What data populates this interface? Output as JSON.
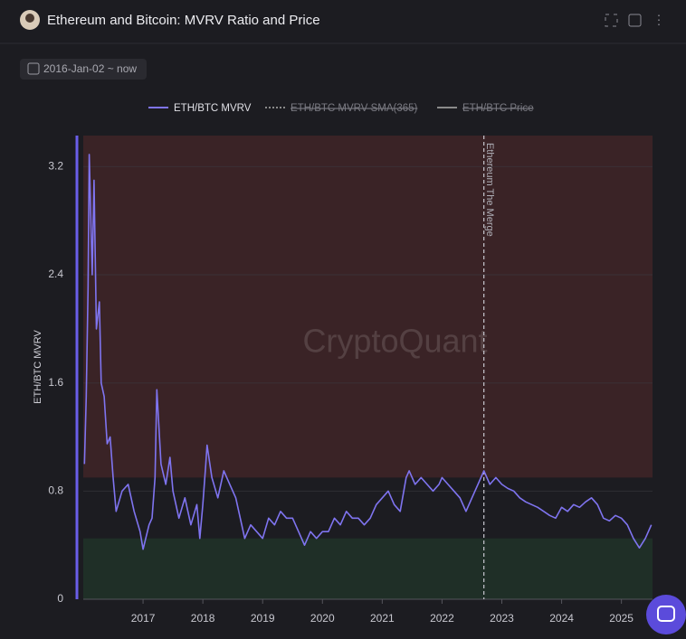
{
  "header": {
    "title": "Ethereum and Bitcoin: MVRV Ratio and Price",
    "date_range": "2016-Jan-02 ~ now"
  },
  "chart_data": {
    "type": "line",
    "ylabel": "ETH/BTC MVRV",
    "watermark": "CryptoQuant",
    "x": [
      2016.02,
      2016.05,
      2016.08,
      2016.1,
      2016.15,
      2016.18,
      2016.22,
      2016.27,
      2016.3,
      2016.35,
      2016.4,
      2016.45,
      2016.5,
      2016.55,
      2016.65,
      2016.75,
      2016.85,
      2016.95,
      2017.0,
      2017.1,
      2017.15,
      2017.2,
      2017.23,
      2017.3,
      2017.38,
      2017.45,
      2017.5,
      2017.6,
      2017.7,
      2017.8,
      2017.9,
      2017.95,
      2018.0,
      2018.05,
      2018.07,
      2018.15,
      2018.25,
      2018.35,
      2018.45,
      2018.55,
      2018.65,
      2018.7,
      2018.8,
      2018.9,
      2019.0,
      2019.1,
      2019.2,
      2019.3,
      2019.4,
      2019.5,
      2019.6,
      2019.7,
      2019.8,
      2019.9,
      2020.0,
      2020.1,
      2020.2,
      2020.3,
      2020.4,
      2020.5,
      2020.6,
      2020.7,
      2020.8,
      2020.9,
      2021.0,
      2021.1,
      2021.2,
      2021.3,
      2021.4,
      2021.45,
      2021.55,
      2021.65,
      2021.75,
      2021.85,
      2021.95,
      2022.0,
      2022.1,
      2022.2,
      2022.3,
      2022.4,
      2022.5,
      2022.6,
      2022.7,
      2022.8,
      2022.9,
      2023.0,
      2023.1,
      2023.2,
      2023.3,
      2023.4,
      2023.5,
      2023.6,
      2023.7,
      2023.8,
      2023.9,
      2024.0,
      2024.1,
      2024.2,
      2024.3,
      2024.4,
      2024.5,
      2024.6,
      2024.7,
      2024.8,
      2024.9,
      2025.0,
      2025.1,
      2025.2,
      2025.3,
      2025.4,
      2025.5
    ],
    "series": [
      {
        "name": "ETH/BTC MVRV",
        "color": "#7f74f0",
        "values": [
          1.0,
          1.5,
          2.3,
          3.29,
          2.4,
          3.1,
          2.0,
          2.2,
          1.6,
          1.5,
          1.15,
          1.2,
          0.9,
          0.65,
          0.8,
          0.85,
          0.65,
          0.5,
          0.37,
          0.55,
          0.6,
          0.9,
          1.55,
          1.0,
          0.85,
          1.05,
          0.8,
          0.6,
          0.75,
          0.55,
          0.7,
          0.45,
          0.7,
          1.0,
          1.14,
          0.9,
          0.75,
          0.95,
          0.85,
          0.75,
          0.55,
          0.45,
          0.55,
          0.5,
          0.45,
          0.6,
          0.55,
          0.65,
          0.6,
          0.6,
          0.5,
          0.4,
          0.5,
          0.45,
          0.5,
          0.5,
          0.6,
          0.55,
          0.65,
          0.6,
          0.6,
          0.55,
          0.6,
          0.7,
          0.75,
          0.8,
          0.7,
          0.65,
          0.9,
          0.95,
          0.85,
          0.9,
          0.85,
          0.8,
          0.85,
          0.9,
          0.85,
          0.8,
          0.75,
          0.65,
          0.75,
          0.85,
          0.95,
          0.85,
          0.9,
          0.85,
          0.82,
          0.8,
          0.75,
          0.72,
          0.7,
          0.68,
          0.65,
          0.62,
          0.6,
          0.68,
          0.65,
          0.7,
          0.68,
          0.72,
          0.75,
          0.7,
          0.6,
          0.58,
          0.62,
          0.6,
          0.55,
          0.45,
          0.38,
          0.45,
          0.55
        ]
      }
    ],
    "hidden_series": [
      {
        "name": "ETH/BTC MVRV-SMA(365)",
        "color": "#8a8a8a"
      },
      {
        "name": "ETH/BTC Price",
        "color": "#8a8a8a"
      }
    ],
    "zones": [
      {
        "from": 0.9,
        "to": 3.43,
        "color": "#3a2326"
      },
      {
        "from": 0,
        "to": 0.45,
        "color": "#1f2f27"
      }
    ],
    "annotation": {
      "x": 2022.7,
      "label": "Ethereum The Merge"
    },
    "xlim": [
      2016.0,
      2025.52
    ],
    "xticks": [
      2017,
      2018,
      2019,
      2020,
      2021,
      2022,
      2023,
      2024,
      2025
    ],
    "ylim": [
      0,
      3.43
    ],
    "yticks": [
      0,
      0.8,
      1.6,
      2.4,
      3.2
    ],
    "grid": true
  }
}
